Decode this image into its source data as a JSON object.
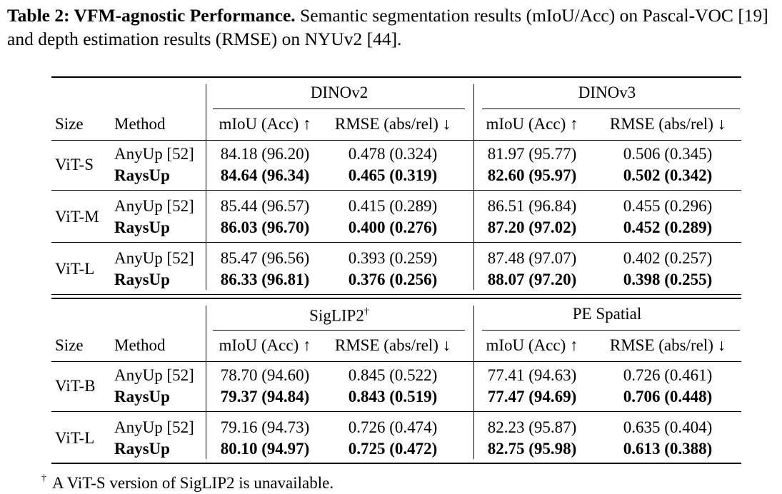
{
  "caption": {
    "label": "Table 2: VFM-agnostic Performance.",
    "text": "Semantic segmentation results (mIoU/Acc) on Pascal-VOC [19] and depth estimation results (RMSE) on NYUv2 [44]."
  },
  "table": {
    "sections": [
      {
        "groups": [
          {
            "text": "DINOv2"
          },
          {
            "text": "DINOv3"
          }
        ],
        "column_headers": [
          "Size",
          "Method",
          "mIoU (Acc) ↑",
          "RMSE (abs/rel) ↓",
          "mIoU (Acc) ↑",
          "RMSE (abs/rel) ↓"
        ],
        "rows": [
          {
            "size": "ViT-S",
            "methods": [
              {
                "name": "AnyUp [52]",
                "cells": [
                  "84.18 (96.20)",
                  "0.478 (0.324)",
                  "81.97 (95.77)",
                  "0.506 (0.345)"
                ]
              },
              {
                "name": "RaysUp",
                "bold": true,
                "cells": [
                  "84.64 (96.34)",
                  "0.465 (0.319)",
                  "82.60 (95.97)",
                  "0.502 (0.342)"
                ]
              }
            ]
          },
          {
            "size": "ViT-M",
            "methods": [
              {
                "name": "AnyUp [52]",
                "cells": [
                  "85.44 (96.57)",
                  "0.415 (0.289)",
                  "86.51 (96.84)",
                  "0.455 (0.296)"
                ]
              },
              {
                "name": "RaysUp",
                "bold": true,
                "cells": [
                  "86.03 (96.70)",
                  "0.400 (0.276)",
                  "87.20 (97.02)",
                  "0.452 (0.289)"
                ]
              }
            ]
          },
          {
            "size": "ViT-L",
            "methods": [
              {
                "name": "AnyUp [52]",
                "cells": [
                  "85.47 (96.56)",
                  "0.393 (0.259)",
                  "87.48 (97.07)",
                  "0.402 (0.257)"
                ]
              },
              {
                "name": "RaysUp",
                "bold": true,
                "cells": [
                  "86.33 (96.81)",
                  "0.376 (0.256)",
                  "88.07 (97.20)",
                  "0.398 (0.255)"
                ]
              }
            ]
          }
        ]
      },
      {
        "groups": [
          {
            "text": "SigLIP2",
            "mark": "†"
          },
          {
            "text": "PE Spatial"
          }
        ],
        "column_headers": [
          "Size",
          "Method",
          "mIoU (Acc) ↑",
          "RMSE (abs/rel) ↓",
          "mIoU (Acc) ↑",
          "RMSE (abs/rel) ↓"
        ],
        "rows": [
          {
            "size": "ViT-B",
            "methods": [
              {
                "name": "AnyUp [52]",
                "cells": [
                  "78.70 (94.60)",
                  "0.845 (0.522)",
                  "77.41 (94.63)",
                  "0.726 (0.461)"
                ]
              },
              {
                "name": "RaysUp",
                "bold": true,
                "cells": [
                  "79.37 (94.84)",
                  "0.843 (0.519)",
                  "77.47 (94.69)",
                  "0.706 (0.448)"
                ]
              }
            ]
          },
          {
            "size": "ViT-L",
            "methods": [
              {
                "name": "AnyUp [52]",
                "cells": [
                  "79.16 (94.73)",
                  "0.726 (0.474)",
                  "82.23 (95.87)",
                  "0.635 (0.404)"
                ]
              },
              {
                "name": "RaysUp",
                "bold": true,
                "cells": [
                  "80.10 (94.97)",
                  "0.725 (0.472)",
                  "82.75 (95.98)",
                  "0.613 (0.388)"
                ]
              }
            ]
          }
        ]
      }
    ]
  },
  "footnote": {
    "mark": "†",
    "text": "A ViT-S version of SigLIP2 is unavailable."
  }
}
